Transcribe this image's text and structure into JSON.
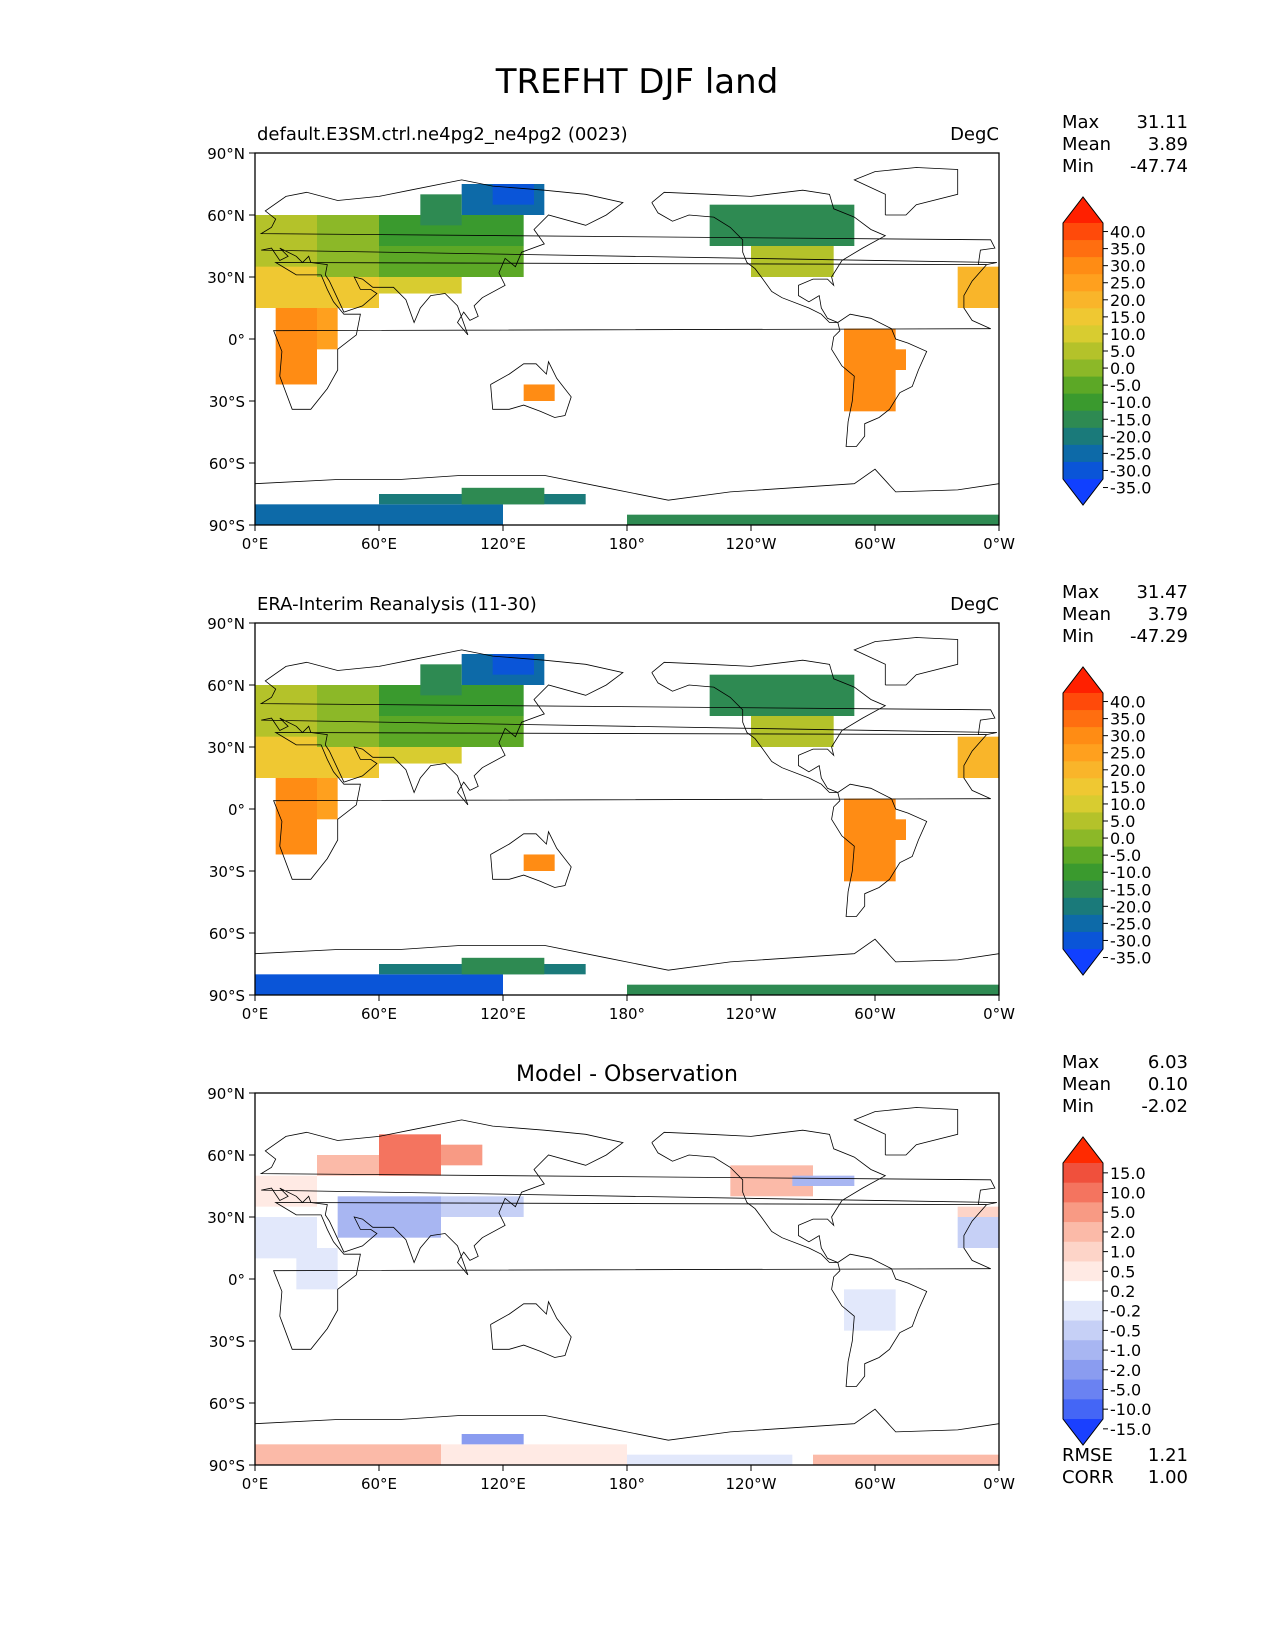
{
  "figure": {
    "title": "TREFHT DJF land"
  },
  "axes": {
    "lat_ticks": [
      "90°N",
      "60°N",
      "30°N",
      "0°",
      "30°S",
      "60°S",
      "90°S"
    ],
    "lon_ticks": [
      "0°E",
      "60°E",
      "120°E",
      "180°",
      "120°W",
      "60°W",
      "0°W"
    ]
  },
  "panels": [
    {
      "id": "model",
      "left_title": "default.E3SM.ctrl.ne4pg2_ne4pg2 (0023)",
      "center_title": "",
      "units": "DegC",
      "stats": {
        "Max": "31.11",
        "Mean": "3.89",
        "Min": "-47.74"
      }
    },
    {
      "id": "obs",
      "left_title": "ERA-Interim Reanalysis (11-30)",
      "center_title": "",
      "units": "DegC",
      "stats": {
        "Max": "31.47",
        "Mean": "3.79",
        "Min": "-47.29"
      }
    },
    {
      "id": "diff",
      "left_title": "",
      "center_title": "Model - Observation",
      "units": "",
      "stats": {
        "Max": "6.03",
        "Mean": "0.10",
        "Min": "-2.02"
      },
      "metrics": {
        "RMSE": "1.21",
        "CORR": "1.00"
      }
    }
  ],
  "colorbars": {
    "temperature": {
      "labels": [
        "40.0",
        "35.0",
        "30.0",
        "25.0",
        "20.0",
        "15.0",
        "10.0",
        "5.0",
        "0.0",
        "-5.0",
        "-10.0",
        "-15.0",
        "-20.0",
        "-25.0",
        "-30.0",
        "-35.0"
      ],
      "colors": [
        "#ff2000",
        "#ff4a0a",
        "#ff6e10",
        "#ff8c14",
        "#ffa01e",
        "#f9b52a",
        "#efc832",
        "#d8cc30",
        "#b4c22a",
        "#8cb828",
        "#5ca826",
        "#3a9a2e",
        "#2e8a52",
        "#1a7a7a",
        "#0d6aa8",
        "#0a55d8",
        "#1040ff"
      ]
    },
    "difference": {
      "labels": [
        "15.0",
        "10.0",
        "5.0",
        "2.0",
        "1.0",
        "0.5",
        "0.2",
        "-0.2",
        "-0.5",
        "-1.0",
        "-2.0",
        "-5.0",
        "-10.0",
        "-15.0"
      ],
      "colors": [
        "#ff2a00",
        "#f0503c",
        "#f4745f",
        "#f89a84",
        "#fbbaa8",
        "#fdd4c8",
        "#ffeae4",
        "#ffffff",
        "#e2e8fb",
        "#c6d0f6",
        "#a8b6f2",
        "#8a9cf0",
        "#6a82f2",
        "#4466f6",
        "#1a40ff"
      ]
    }
  },
  "map_data": {
    "projection": "cylindrical equidistant, central longitude 180",
    "variable": "TREFHT",
    "season": "DJF",
    "domain": "land"
  }
}
